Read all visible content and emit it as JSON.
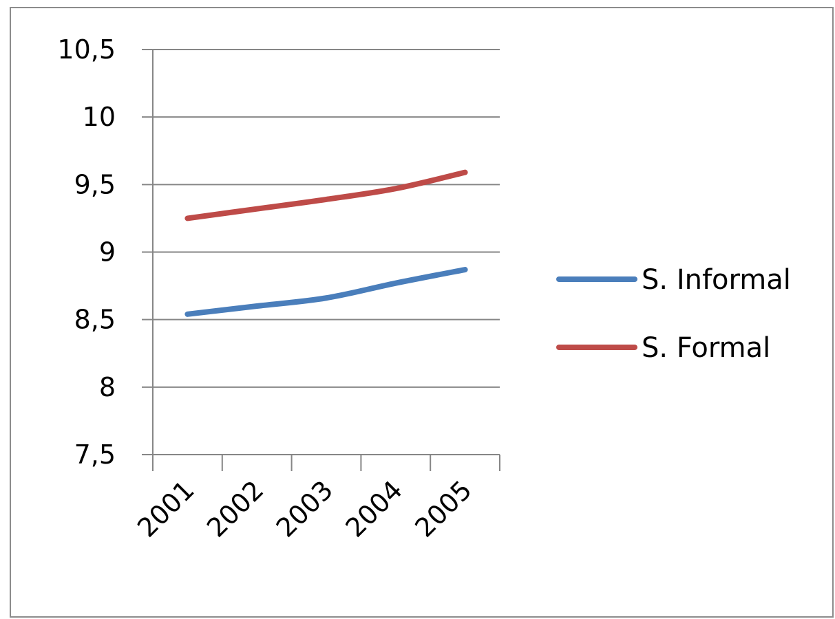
{
  "chart_data": {
    "type": "line",
    "x": [
      "2001",
      "2002",
      "2003",
      "2004",
      "2005"
    ],
    "series": [
      {
        "name": "S. Informal",
        "color": "#4a7ebb",
        "values": [
          8.54,
          8.6,
          8.66,
          8.77,
          8.87
        ]
      },
      {
        "name": "S. Formal",
        "color": "#be4b48",
        "values": [
          9.25,
          9.32,
          9.39,
          9.47,
          9.59
        ]
      }
    ],
    "ylim": [
      7.5,
      10.5
    ],
    "yticks": [
      "7,5",
      "8",
      "8,5",
      "9",
      "9,5",
      "10",
      "10,5"
    ],
    "grid": true,
    "legend_position": "right",
    "title": "",
    "xlabel": "",
    "ylabel": ""
  }
}
